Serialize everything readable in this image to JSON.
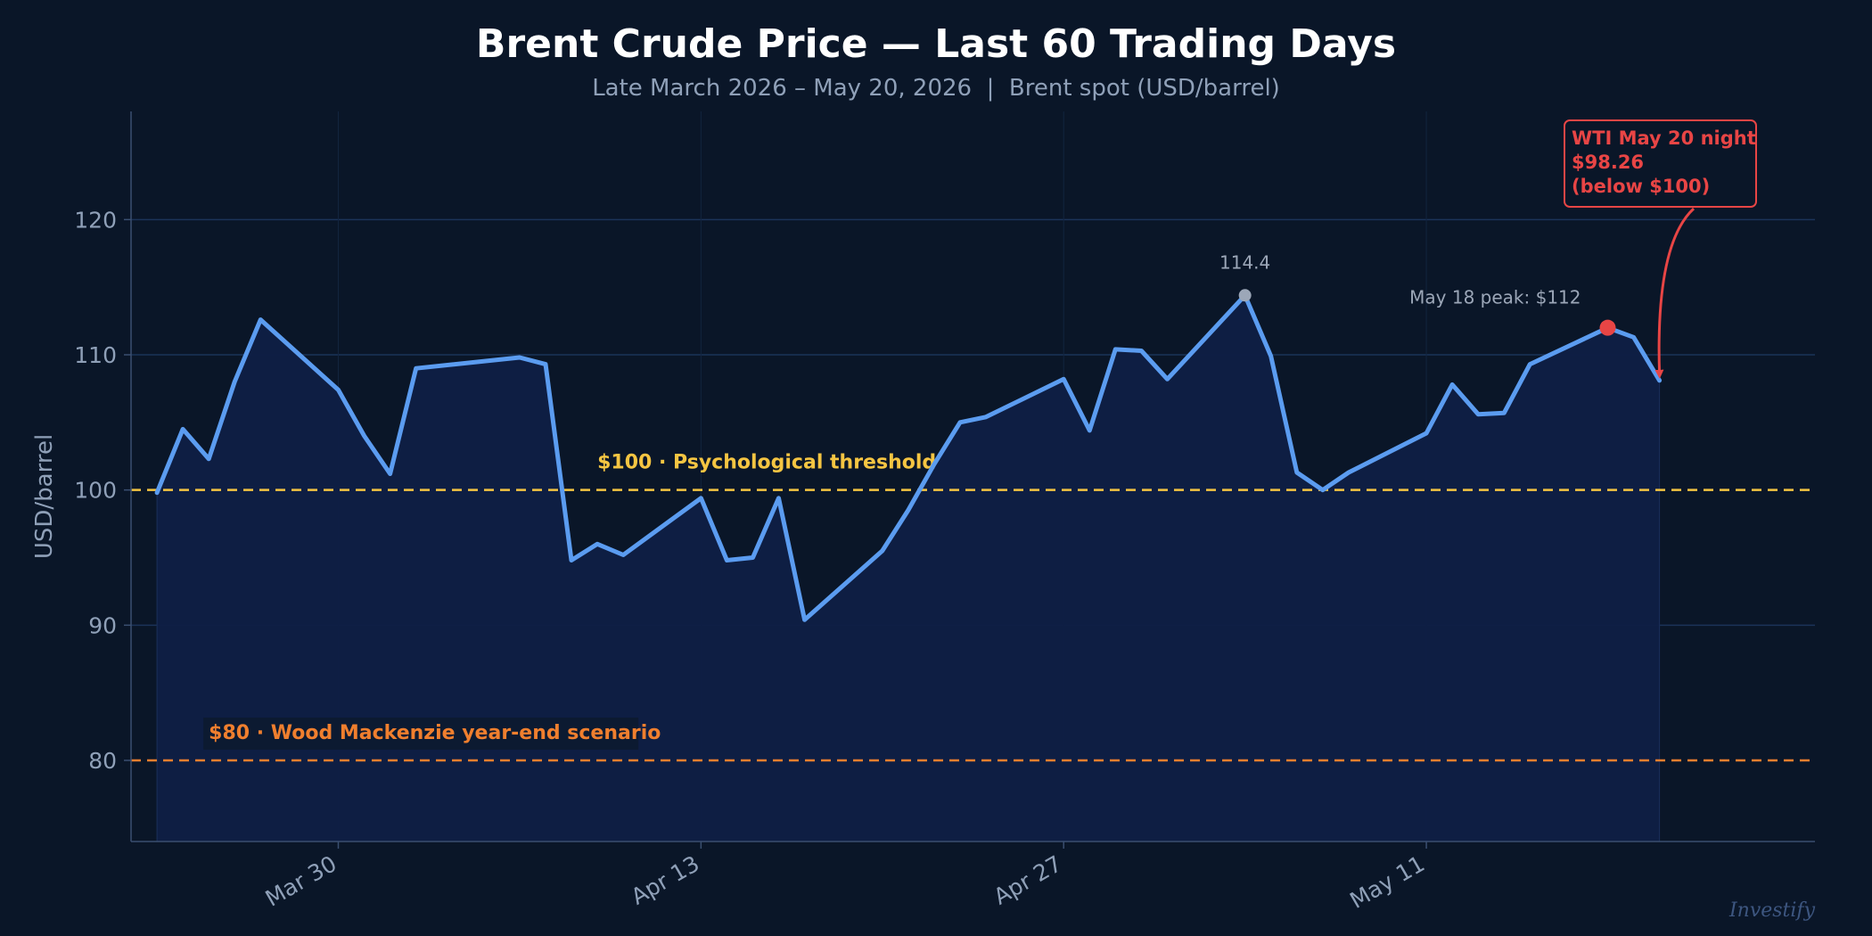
{
  "chart_data": {
    "type": "line",
    "title": "Brent Crude Price — Last 60 Trading Days",
    "subtitle": "Late March 2026 – May 20, 2026  |  Brent spot (USD/barrel)",
    "ylabel": "USD/barrel",
    "xlabel": "",
    "ylim": [
      74,
      128
    ],
    "yticks": [
      80,
      90,
      100,
      110,
      120
    ],
    "xlim": [
      "2026-03-22",
      "2026-05-26"
    ],
    "xticks": [
      {
        "date": "2026-03-30",
        "label": "Mar 30"
      },
      {
        "date": "2026-04-13",
        "label": "Apr 13"
      },
      {
        "date": "2026-04-27",
        "label": "Apr 27"
      },
      {
        "date": "2026-05-11",
        "label": "May 11"
      }
    ],
    "grid": true,
    "legend": "none",
    "series": [
      {
        "color": "#5b9cf0",
        "fill": "#0f1f45",
        "points": [
          [
            "2026-03-23",
            99.8
          ],
          [
            "2026-03-24",
            104.5
          ],
          [
            "2026-03-25",
            102.3
          ],
          [
            "2026-03-26",
            108.0
          ],
          [
            "2026-03-27",
            112.6
          ],
          [
            "2026-03-30",
            107.4
          ],
          [
            "2026-03-31",
            104.0
          ],
          [
            "2026-04-01",
            101.2
          ],
          [
            "2026-04-02",
            109.0
          ],
          [
            "2026-04-06",
            109.8
          ],
          [
            "2026-04-07",
            109.3
          ],
          [
            "2026-04-08",
            94.8
          ],
          [
            "2026-04-09",
            96.0
          ],
          [
            "2026-04-10",
            95.2
          ],
          [
            "2026-04-13",
            99.4
          ],
          [
            "2026-04-14",
            94.8
          ],
          [
            "2026-04-15",
            95.0
          ],
          [
            "2026-04-16",
            99.4
          ],
          [
            "2026-04-17",
            90.4
          ],
          [
            "2026-04-20",
            95.5
          ],
          [
            "2026-04-21",
            98.5
          ],
          [
            "2026-04-22",
            101.9
          ],
          [
            "2026-04-23",
            105.0
          ],
          [
            "2026-04-24",
            105.4
          ],
          [
            "2026-04-27",
            108.2
          ],
          [
            "2026-04-28",
            104.4
          ],
          [
            "2026-04-29",
            110.4
          ],
          [
            "2026-04-30",
            110.3
          ],
          [
            "2026-05-01",
            108.2
          ],
          [
            "2026-05-04",
            114.4
          ],
          [
            "2026-05-05",
            109.9
          ],
          [
            "2026-05-06",
            101.3
          ],
          [
            "2026-05-07",
            100.0
          ],
          [
            "2026-05-08",
            101.3
          ],
          [
            "2026-05-11",
            104.2
          ],
          [
            "2026-05-12",
            107.8
          ],
          [
            "2026-05-13",
            105.6
          ],
          [
            "2026-05-14",
            105.7
          ],
          [
            "2026-05-15",
            109.3
          ],
          [
            "2026-05-18",
            112.0
          ],
          [
            "2026-05-19",
            111.3
          ],
          [
            "2026-05-20",
            108.1
          ]
        ]
      }
    ],
    "reference_lines": [
      {
        "y": 100,
        "label": "$100  ·  Psychological threshold",
        "color": "#f5c542",
        "label_x": "2026-04-09"
      },
      {
        "y": 80,
        "label": "$80  ·  Wood Mackenzie year-end scenario",
        "color": "#f07f2e",
        "label_x": "2026-03-25"
      }
    ],
    "annotations": [
      {
        "text": "114.4",
        "x": "2026-05-04",
        "y": 114.4,
        "color": "#9ca7b8",
        "marker": true
      },
      {
        "text": "May 18 peak: $112",
        "x": "2026-05-18",
        "y": 112.0,
        "color": "#9ca7b8",
        "marker": true,
        "marker_color": "#e84545"
      },
      {
        "lines": [
          "WTI May 20 night",
          "$98.26",
          "(below $100)"
        ],
        "color": "#e84545",
        "arrow_to": [
          "2026-05-20",
          108.1
        ]
      }
    ],
    "watermark": "Investify"
  }
}
